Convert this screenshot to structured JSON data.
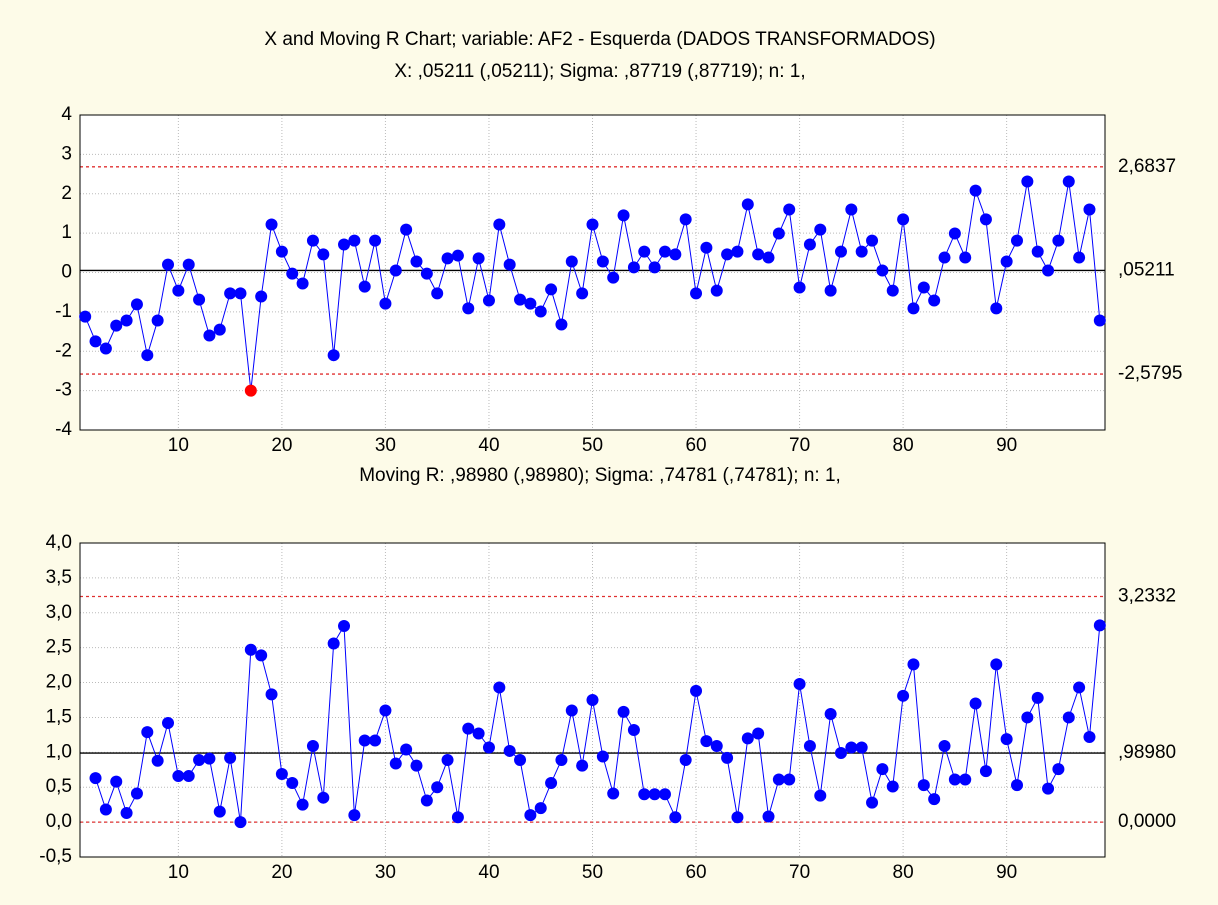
{
  "chart_data": [
    {
      "type": "line",
      "title": "X and Moving R Chart; variable:  AF2 - Esquerda (DADOS TRANSFORMADOS)",
      "subtitle": "X: ,05211 (,05211); Sigma: ,87719 (,87719); n: 1,",
      "x": [
        1,
        2,
        3,
        4,
        5,
        6,
        7,
        8,
        9,
        10,
        11,
        12,
        13,
        14,
        15,
        16,
        17,
        18,
        19,
        20,
        21,
        22,
        23,
        24,
        25,
        26,
        27,
        28,
        29,
        30,
        31,
        32,
        33,
        34,
        35,
        36,
        37,
        38,
        39,
        40,
        41,
        42,
        43,
        44,
        45,
        46,
        47,
        48,
        49,
        50,
        51,
        52,
        53,
        54,
        55,
        56,
        57,
        58,
        59,
        60,
        61,
        62,
        63,
        64,
        65,
        66,
        67,
        68,
        69,
        70,
        71,
        72,
        73,
        74,
        75,
        76,
        77,
        78,
        79,
        80,
        81,
        82,
        83,
        84,
        85,
        86,
        87,
        88,
        89,
        90,
        91,
        92,
        93,
        94,
        95,
        96,
        97,
        98,
        99
      ],
      "values": [
        -1.12,
        -1.75,
        -1.93,
        -1.35,
        -1.22,
        -0.81,
        -2.1,
        -1.22,
        0.2,
        -0.46,
        0.2,
        -0.69,
        -1.6,
        -1.45,
        -0.53,
        -0.53,
        -3.0,
        -0.61,
        1.22,
        0.53,
        -0.03,
        -0.28,
        0.81,
        0.46,
        -2.1,
        0.71,
        0.81,
        -0.36,
        0.81,
        -0.79,
        0.05,
        1.09,
        0.28,
        -0.03,
        -0.53,
        0.36,
        0.43,
        -0.91,
        0.36,
        -0.71,
        1.22,
        0.2,
        -0.69,
        -0.79,
        -0.99,
        -0.43,
        -1.32,
        0.28,
        -0.53,
        1.22,
        0.28,
        -0.13,
        1.45,
        0.13,
        0.53,
        0.13,
        0.53,
        0.46,
        1.35,
        -0.53,
        0.63,
        -0.46,
        0.46,
        0.53,
        1.73,
        0.46,
        0.38,
        0.99,
        1.6,
        -0.38,
        0.71,
        1.09,
        -0.46,
        0.53,
        1.6,
        0.53,
        0.81,
        0.05,
        -0.46,
        1.35,
        -0.91,
        -0.38,
        -0.71,
        0.38,
        0.99,
        0.38,
        2.08,
        1.35,
        -0.91,
        0.28,
        0.81,
        2.31,
        0.53,
        0.05,
        0.81,
        2.31,
        0.38,
        1.6,
        -1.22
      ],
      "color": "#0000ff",
      "outlier_color": "#ff0000",
      "xlim": [
        0.5,
        99.5
      ],
      "xticks": [
        10,
        20,
        30,
        40,
        50,
        60,
        70,
        80,
        90
      ],
      "ylim": [
        -4,
        4
      ],
      "yticks": [
        -4,
        -3,
        -2,
        -1,
        0,
        1,
        2,
        3,
        4
      ],
      "ucl": {
        "value": 2.6837,
        "label": "2,6837"
      },
      "center": {
        "value": 0.05211,
        "label": ",05211"
      },
      "lcl": {
        "value": -2.5795,
        "label": "-2,5795"
      },
      "limit_color": "#e03030",
      "center_color": "#000000",
      "grid": true
    },
    {
      "type": "line",
      "title": "Moving R: ,98980 (,98980); Sigma: ,74781 (,74781); n: 1,",
      "x": [
        2,
        3,
        4,
        5,
        6,
        7,
        8,
        9,
        10,
        11,
        12,
        13,
        14,
        15,
        16,
        17,
        18,
        19,
        20,
        21,
        22,
        23,
        24,
        25,
        26,
        27,
        28,
        29,
        30,
        31,
        32,
        33,
        34,
        35,
        36,
        37,
        38,
        39,
        40,
        41,
        42,
        43,
        44,
        45,
        46,
        47,
        48,
        49,
        50,
        51,
        52,
        53,
        54,
        55,
        56,
        57,
        58,
        59,
        60,
        61,
        62,
        63,
        64,
        65,
        66,
        67,
        68,
        69,
        70,
        71,
        72,
        73,
        74,
        75,
        76,
        77,
        78,
        79,
        80,
        81,
        82,
        83,
        84,
        85,
        86,
        87,
        88,
        89,
        90,
        91,
        92,
        93,
        94,
        95,
        96,
        97,
        98,
        99
      ],
      "values": [
        0.63,
        0.18,
        0.58,
        0.13,
        0.41,
        1.29,
        0.88,
        1.42,
        0.66,
        0.66,
        0.89,
        0.91,
        0.15,
        0.92,
        0,
        2.47,
        2.39,
        1.83,
        0.69,
        0.56,
        0.25,
        1.09,
        0.35,
        2.56,
        2.81,
        0.1,
        1.17,
        1.17,
        1.6,
        0.84,
        1.04,
        0.81,
        0.31,
        0.5,
        0.89,
        0.07,
        1.34,
        1.27,
        1.07,
        1.93,
        1.02,
        0.89,
        0.1,
        0.2,
        0.56,
        0.89,
        1.6,
        0.81,
        1.75,
        0.94,
        0.41,
        1.58,
        1.32,
        0.4,
        0.4,
        0.4,
        0.07,
        0.89,
        1.88,
        1.16,
        1.09,
        0.92,
        0.07,
        1.2,
        1.27,
        0.08,
        0.61,
        0.61,
        1.98,
        1.09,
        0.38,
        1.55,
        0.99,
        1.07,
        1.07,
        0.28,
        0.76,
        0.51,
        1.81,
        2.26,
        0.53,
        0.33,
        1.09,
        0.61,
        0.61,
        1.7,
        0.73,
        2.26,
        1.19,
        0.53,
        1.5,
        1.78,
        0.48,
        0.76,
        1.5,
        1.93,
        1.22,
        2.82
      ],
      "color": "#0000ff",
      "outlier_color": "#ff0000",
      "xlim": [
        0.5,
        99.5
      ],
      "xticks": [
        10,
        20,
        30,
        40,
        50,
        60,
        70,
        80,
        90
      ],
      "ylim": [
        -0.5,
        4
      ],
      "yticks": [
        {
          "value": -0.5,
          "label": "-0,5"
        },
        {
          "value": 0,
          "label": "0,0"
        },
        {
          "value": 0.5,
          "label": "0,5"
        },
        {
          "value": 1,
          "label": "1,0"
        },
        {
          "value": 1.5,
          "label": "1,5"
        },
        {
          "value": 2,
          "label": "2,0"
        },
        {
          "value": 2.5,
          "label": "2,5"
        },
        {
          "value": 3,
          "label": "3,0"
        },
        {
          "value": 3.5,
          "label": "3,5"
        },
        {
          "value": 4,
          "label": "4,0"
        }
      ],
      "ucl": {
        "value": 3.2332,
        "label": "3,2332"
      },
      "center": {
        "value": 0.9898,
        "label": ",98980"
      },
      "lcl": {
        "value": 0,
        "label": "0,0000"
      },
      "limit_color": "#e03030",
      "center_color": "#000000",
      "grid": true
    }
  ]
}
